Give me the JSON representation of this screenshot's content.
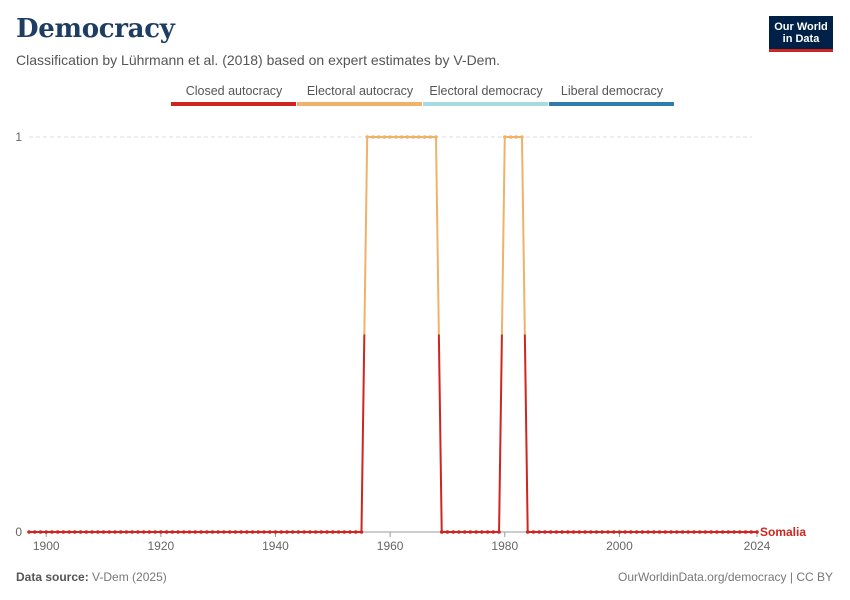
{
  "header": {
    "title": "Democracy",
    "subtitle": "Classification by Lührmann et al. (2018) based on expert estimates by V-Dem."
  },
  "logo": {
    "line1": "Our World",
    "line2": "in Data"
  },
  "footer": {
    "source_label": "Data source:",
    "source_value": "V-Dem (2025)",
    "url_license": "OurWorldinData.org/democracy | CC BY"
  },
  "colors": {
    "closed_autocracy": "#ce261e",
    "electoral_autocracy": "#f0b26b",
    "electoral_democracy": "#a8dbe0",
    "liberal_democracy": "#2f7bad",
    "grid": "#dddddd",
    "axis": "#999999"
  },
  "chart_data": {
    "type": "line",
    "title": "Democracy",
    "subtitle": "Classification by Lührmann et al. (2018) based on expert estimates by V-Dem.",
    "xlim": [
      1897,
      2024
    ],
    "ylim": [
      0,
      1
    ],
    "x_ticks": [
      1900,
      1920,
      1940,
      1960,
      1980,
      2000,
      2024
    ],
    "y_ticks": [
      0,
      1
    ],
    "grid": "horizontal dashed",
    "legend": {
      "position": "top-center",
      "entries": [
        "Closed autocracy",
        "Electoral autocracy",
        "Electoral democracy",
        "Liberal democracy"
      ]
    },
    "series": [
      {
        "name": "Somalia",
        "start_year": 1897,
        "end_year": 2024,
        "segments": [
          {
            "from": 1897,
            "to": 1955,
            "value": 0,
            "category": "Closed autocracy"
          },
          {
            "from": 1956,
            "to": 1968,
            "value": 1,
            "category": "Electoral autocracy"
          },
          {
            "from": 1969,
            "to": 1979,
            "value": 0,
            "category": "Closed autocracy"
          },
          {
            "from": 1980,
            "to": 1983,
            "value": 1,
            "category": "Electoral autocracy"
          },
          {
            "from": 1984,
            "to": 2024,
            "value": 0,
            "category": "Closed autocracy"
          }
        ]
      }
    ]
  }
}
